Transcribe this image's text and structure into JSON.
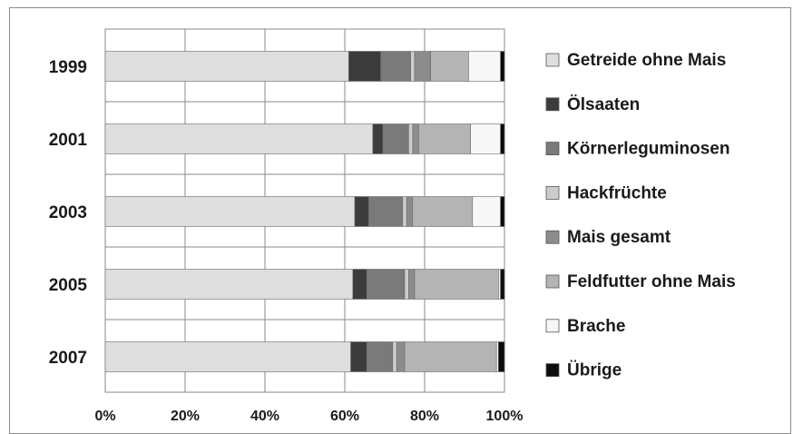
{
  "chart_data": {
    "type": "bar",
    "orientation": "horizontal",
    "stacked": "percent",
    "categories": [
      "1999",
      "2001",
      "2003",
      "2005",
      "2007"
    ],
    "series": [
      {
        "name": "Getreide ohne Mais",
        "color": "#dedede",
        "values": [
          61,
          67,
          62.5,
          62,
          61.5
        ]
      },
      {
        "name": "Ölsaaten",
        "color": "#3c3c3c",
        "values": [
          8,
          2.5,
          3.5,
          3.5,
          4
        ]
      },
      {
        "name": "Körnerleguminosen",
        "color": "#7a7a7a",
        "values": [
          7.5,
          6.5,
          8.5,
          9.5,
          6.5
        ]
      },
      {
        "name": "Hackfrüchte",
        "color": "#cccccc",
        "values": [
          1,
          1,
          1,
          1,
          1
        ]
      },
      {
        "name": "Mais gesamt",
        "color": "#8c8c8c",
        "values": [
          4,
          1.5,
          1.5,
          1.5,
          2
        ]
      },
      {
        "name": "Feldfutter ohne Mais",
        "color": "#b4b4b4",
        "values": [
          9.5,
          13,
          15,
          21,
          23
        ]
      },
      {
        "name": "Brache",
        "color": "#f7f7f7",
        "values": [
          8,
          7.5,
          7,
          0.5,
          0.5
        ]
      },
      {
        "name": "Übrige",
        "color": "#0c0c0c",
        "values": [
          1,
          1,
          1,
          1,
          1.5
        ]
      }
    ],
    "xlim": [
      0,
      100
    ],
    "xticks": [
      "0%",
      "20%",
      "40%",
      "60%",
      "80%",
      "100%"
    ],
    "grid": true,
    "legend_position": "right"
  }
}
